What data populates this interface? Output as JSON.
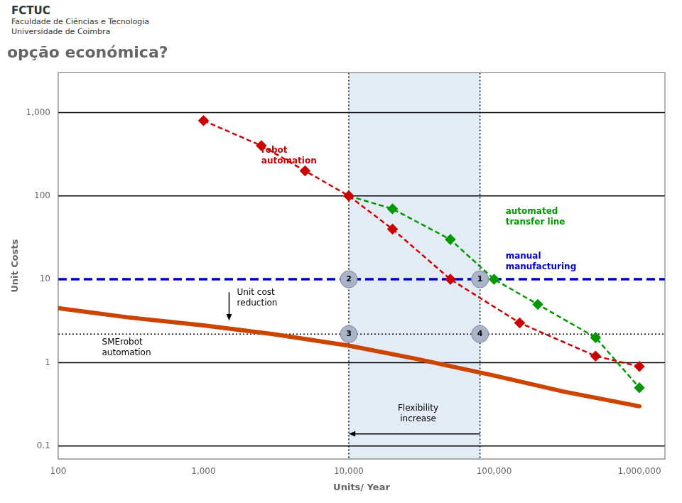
{
  "chart_data": {
    "type": "line",
    "title": "opção económica?",
    "subtitle": [
      "FCTUC",
      "Faculdade de Ciências e Tecnologia",
      "Universidade de Coimbra"
    ],
    "xlabel": "Units/ Year",
    "ylabel": "Unit Costs",
    "log": true,
    "grid": false,
    "xlim": [
      100,
      1500000
    ],
    "ylim": [
      0.07,
      3000
    ],
    "xticks": [
      100,
      {
        "value": 1000,
        "label": "1,000"
      },
      {
        "value": 10000,
        "label": "10,000"
      },
      {
        "value": 100000,
        "label": "100,000"
      },
      {
        "value": 1000000,
        "label": "1,000,000"
      }
    ],
    "yticks": [
      0.1,
      1,
      10,
      100,
      {
        "value": 1000,
        "label": "1,000"
      }
    ],
    "series": [
      {
        "color": "#cc0000",
        "line_style": "dashed",
        "marker": "diamond",
        "x": [
          1000,
          2500,
          5000,
          10000,
          20000,
          50000,
          150000,
          500000,
          1000000
        ],
        "values": [
          800,
          400,
          200,
          100,
          40,
          10,
          3,
          1.2,
          0.9
        ]
      },
      {
        "color": "#009900",
        "line_style": "dashed",
        "marker": "diamond",
        "x": [
          10000,
          20000,
          50000,
          100000,
          200000,
          500000,
          1000000
        ],
        "values": [
          100,
          70,
          30,
          10,
          5,
          2,
          0.5
        ]
      },
      {
        "color": "#cc4400",
        "line_style": "solid",
        "x": [
          100,
          300,
          1000,
          3000,
          10000,
          30000,
          100000,
          300000,
          1000000
        ],
        "values": [
          4.5,
          3.5,
          2.8,
          2.2,
          1.6,
          1.1,
          0.7,
          0.45,
          0.3
        ]
      }
    ],
    "reference_lines": [
      {
        "axis": "y",
        "value": 1000,
        "color": "#000000",
        "line_style": "solid"
      },
      {
        "axis": "y",
        "value": 100,
        "color": "#000000",
        "line_style": "solid"
      },
      {
        "axis": "y",
        "value": 1,
        "color": "#000000",
        "line_style": "solid"
      },
      {
        "axis": "y",
        "value": 0.1,
        "color": "#000000",
        "line_style": "solid"
      },
      {
        "axis": "y",
        "value": 10,
        "color": "#0000cc",
        "line_style": "dashed"
      },
      {
        "axis": "y",
        "value": 2.2,
        "color": "#000000",
        "line_style": "dotted"
      },
      {
        "axis": "x",
        "value": 10000,
        "color": "#000000",
        "line_style": "dotted"
      },
      {
        "axis": "x",
        "value": 80000,
        "color": "#000000",
        "line_style": "dotted"
      }
    ],
    "shaded_regions": [
      {
        "x": [
          10000,
          80000
        ],
        "color": "#b0c8e0"
      }
    ],
    "circles": [
      {
        "x": 80000,
        "y": 10,
        "label": "1"
      },
      {
        "x": 10000,
        "y": 10,
        "label": "2"
      },
      {
        "x": 10000,
        "y": 2.2,
        "label": "3"
      },
      {
        "x": 80000,
        "y": 2.2,
        "label": "4"
      }
    ],
    "arrows": [
      {
        "from": [
          1500,
          7
        ],
        "to": [
          1500,
          3.2
        ]
      },
      {
        "from": [
          80000,
          0.14
        ],
        "to": [
          10000,
          0.14
        ]
      }
    ],
    "annotations": [
      {
        "text": "robot\nautomation",
        "x": 2500,
        "y": 300,
        "color": "#cc0000",
        "position": "right"
      },
      {
        "text": "automated\ntransfer line",
        "x": 120000,
        "y": 55,
        "color": "#009900",
        "position": "right"
      },
      {
        "text": "manual\nmanufacturing",
        "x": 120000,
        "y": 16,
        "color": "#0000cc",
        "position": "right"
      },
      {
        "text": "SMErobot\nautomation",
        "x": 200,
        "y": 1.5,
        "position": "right"
      },
      {
        "text": "Unit cost\nreduction",
        "x": 1700,
        "y": 8,
        "position": "below_right"
      },
      {
        "text": "Flexibility\nincrease",
        "x": 30000,
        "y": 0.18,
        "position": "above"
      }
    ]
  }
}
